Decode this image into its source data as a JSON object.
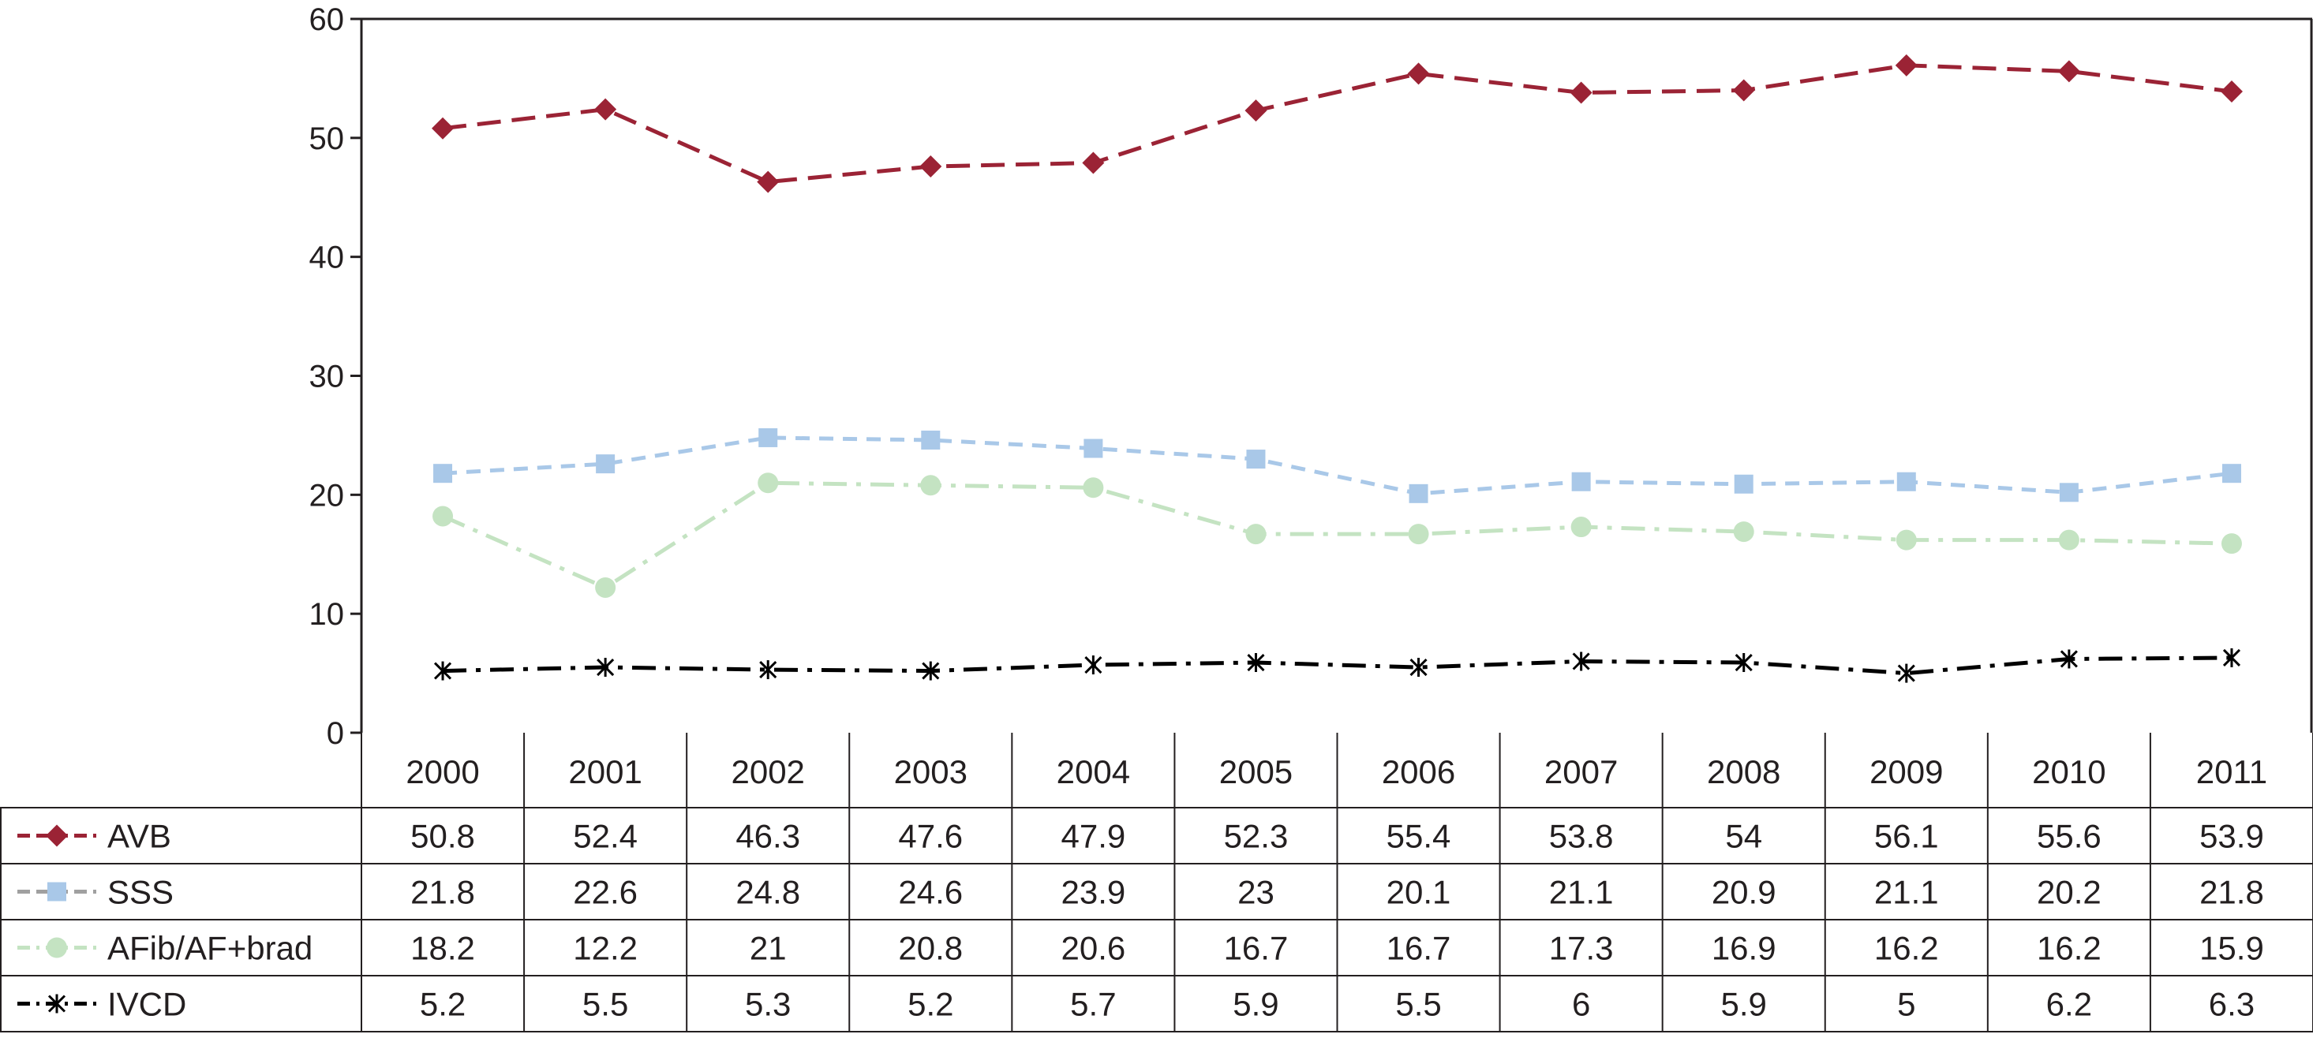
{
  "chart_data": {
    "type": "line",
    "categories": [
      "2000",
      "2001",
      "2002",
      "2003",
      "2004",
      "2005",
      "2006",
      "2007",
      "2008",
      "2009",
      "2010",
      "2011"
    ],
    "ylim": [
      0,
      60
    ],
    "yticks": [
      0,
      10,
      20,
      30,
      40,
      50,
      60
    ],
    "grid": false,
    "legend": "data-table-left",
    "series": [
      {
        "name": "AVB",
        "color": "#9b2335",
        "marker": "diamond",
        "dash": "long-dash",
        "values": [
          50.8,
          52.4,
          46.3,
          47.6,
          47.9,
          52.3,
          55.4,
          53.8,
          54,
          56.1,
          55.6,
          53.9
        ],
        "labels": [
          "50.8",
          "52.4",
          "46.3",
          "47.6",
          "47.9",
          "52.3",
          "55.4",
          "53.8",
          "54",
          "56.1",
          "55.6",
          "53.9"
        ]
      },
      {
        "name": "SSS",
        "color": "#a9c8e8",
        "marker": "square",
        "dash": "short-dash",
        "values": [
          21.8,
          22.6,
          24.8,
          24.6,
          23.9,
          23,
          20.1,
          21.1,
          20.9,
          21.1,
          20.2,
          21.8
        ],
        "labels": [
          "21.8",
          "22.6",
          "24.8",
          "24.6",
          "23.9",
          "23",
          "20.1",
          "21.1",
          "20.9",
          "21.1",
          "20.2",
          "21.8"
        ]
      },
      {
        "name": "AFib/AF+brad",
        "color": "#c4e3c2",
        "marker": "circle",
        "dash": "dash-dot",
        "values": [
          18.2,
          12.2,
          21,
          20.8,
          20.6,
          16.7,
          16.7,
          17.3,
          16.9,
          16.2,
          16.2,
          15.9
        ],
        "labels": [
          "18.2",
          "12.2",
          "21",
          "20.8",
          "20.6",
          "16.7",
          "16.7",
          "17.3",
          "16.9",
          "16.2",
          "16.2",
          "15.9"
        ]
      },
      {
        "name": "IVCD",
        "color": "#000000",
        "marker": "asterisk",
        "dash": "dash-dot",
        "values": [
          5.2,
          5.5,
          5.3,
          5.2,
          5.7,
          5.9,
          5.5,
          6,
          5.9,
          5,
          6.2,
          6.3
        ],
        "labels": [
          "5.2",
          "5.5",
          "5.3",
          "5.2",
          "5.7",
          "5.9",
          "5.5",
          "6",
          "5.9",
          "5",
          "6.2",
          "6.3"
        ]
      }
    ]
  }
}
